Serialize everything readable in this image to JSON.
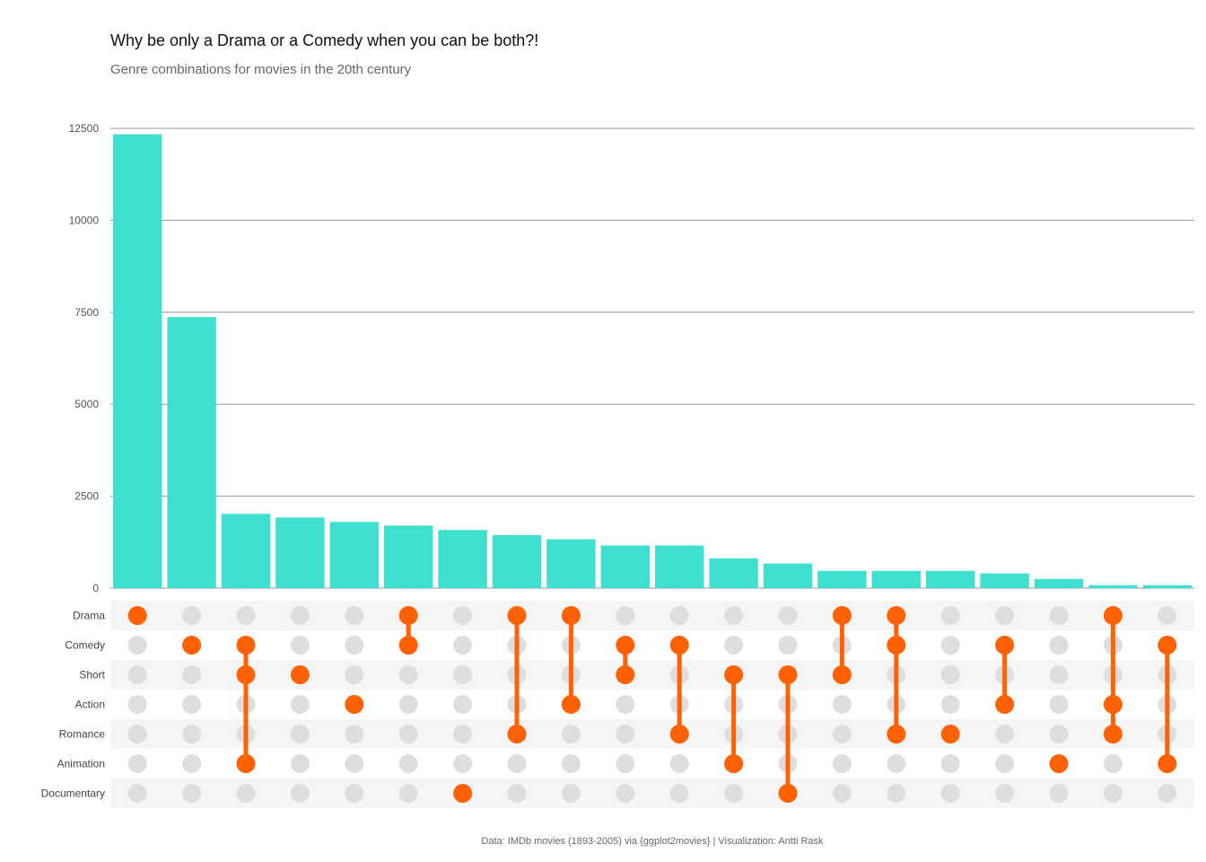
{
  "title": "Why be only a Drama or a Comedy when you can be both?!",
  "subtitle": "Genre combinations for movies in the 20th century",
  "caption": "Data: IMDb movies (1893-2005) via {ggplot2movies} | Visualization: Antti Rask",
  "colors": {
    "bar": "#40E0D0",
    "dot_active": "#FF6103",
    "dot_inactive": "#DEDEDE",
    "stripe": "#F5F5F5",
    "grid": "#999999"
  },
  "chart_data": {
    "type": "bar",
    "title": "Why be only a Drama or a Comedy when you can be both?!",
    "subtitle": "Genre combinations for movies in the 20th century",
    "ylim": [
      0,
      12500
    ],
    "yticks": [
      0,
      2500,
      5000,
      7500,
      10000,
      12500
    ],
    "grid": true,
    "sets": [
      "Drama",
      "Comedy",
      "Short",
      "Action",
      "Romance",
      "Animation",
      "Documentary"
    ],
    "values": [
      12340,
      7370,
      2020,
      1920,
      1800,
      1700,
      1580,
      1440,
      1330,
      1160,
      1160,
      810,
      670,
      470,
      470,
      470,
      400,
      250,
      80,
      80
    ],
    "combinations": [
      [
        "Drama"
      ],
      [
        "Comedy"
      ],
      [
        "Comedy",
        "Short",
        "Animation"
      ],
      [
        "Short"
      ],
      [
        "Action"
      ],
      [
        "Drama",
        "Comedy"
      ],
      [
        "Documentary"
      ],
      [
        "Drama",
        "Romance"
      ],
      [
        "Drama",
        "Action"
      ],
      [
        "Comedy",
        "Short"
      ],
      [
        "Comedy",
        "Romance"
      ],
      [
        "Short",
        "Animation"
      ],
      [
        "Short",
        "Documentary"
      ],
      [
        "Drama",
        "Short"
      ],
      [
        "Drama",
        "Comedy",
        "Romance"
      ],
      [
        "Romance"
      ],
      [
        "Comedy",
        "Action"
      ],
      [
        "Animation"
      ],
      [
        "Drama",
        "Action",
        "Romance"
      ],
      [
        "Comedy",
        "Animation"
      ]
    ]
  }
}
